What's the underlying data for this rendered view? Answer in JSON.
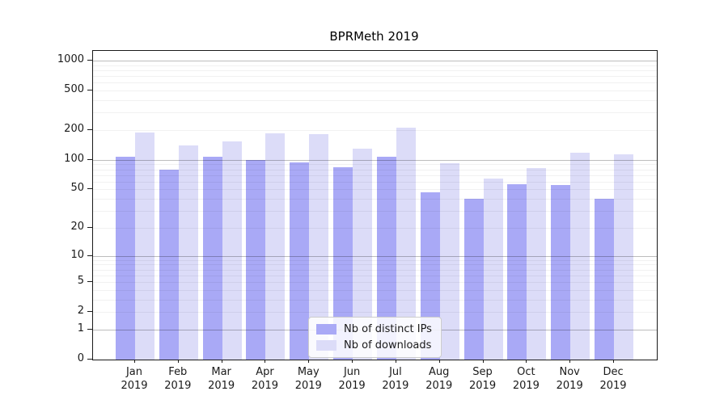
{
  "chart_data": {
    "type": "bar",
    "title": "BPRMeth 2019",
    "categories": [
      "Jan",
      "Feb",
      "Mar",
      "Apr",
      "May",
      "Jun",
      "Jul",
      "Aug",
      "Sep",
      "Oct",
      "Nov",
      "Dec"
    ],
    "category_year": "2019",
    "series": [
      {
        "name": "Nb of distinct IPs",
        "color": "#a9a9f6",
        "values": [
          108,
          80,
          108,
          99,
          95,
          84,
          107,
          47,
          40,
          56,
          55,
          40
        ]
      },
      {
        "name": "Nb of downloads",
        "color": "#dcdcf8",
        "values": [
          188,
          139,
          153,
          185,
          182,
          131,
          212,
          92,
          65,
          82,
          119,
          113
        ]
      }
    ],
    "yscale": "log1p",
    "ylim": [
      0,
      1250
    ],
    "yticks": [
      0,
      1,
      2,
      5,
      10,
      20,
      50,
      100,
      200,
      500,
      1000
    ],
    "grid_major_at": [
      1,
      10,
      100,
      1000
    ],
    "grid": "on",
    "legend_position": "lower-center-inside"
  }
}
